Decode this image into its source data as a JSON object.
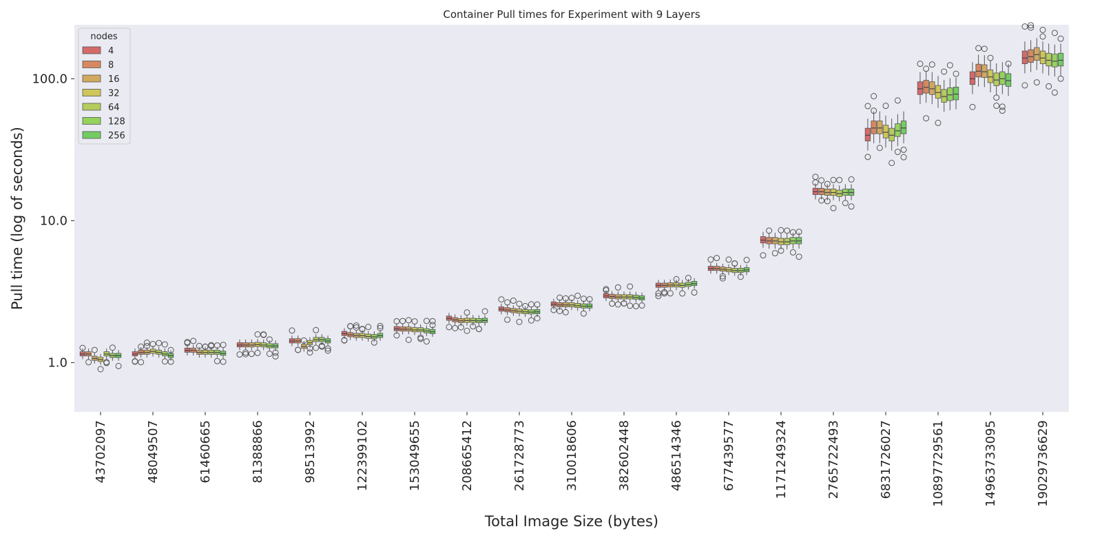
{
  "chart_data": {
    "type": "box",
    "title": "Container Pull times for Experiment with 9 Layers",
    "xlabel": "Total Image Size (bytes)",
    "ylabel": "Pull time (log of seconds)",
    "yscale": "log",
    "ylim": [
      0.45,
      240
    ],
    "yticks": [
      1.0,
      10.0,
      100.0
    ],
    "ytick_labels": [
      "1.0",
      "10.0",
      "100.0"
    ],
    "grid": false,
    "background": "#eaeaf2",
    "legend": {
      "title": "nodes",
      "placement": "top-left"
    },
    "hue_levels": [
      "4",
      "8",
      "16",
      "32",
      "64",
      "128",
      "256"
    ],
    "hue_colors": [
      "#d46a6a",
      "#d6885f",
      "#d1a85f",
      "#cfc65a",
      "#b4cd5c",
      "#95d35c",
      "#72cc62"
    ],
    "categories": [
      "43702097",
      "48049507",
      "61460665",
      "81388866",
      "98513992",
      "122399102",
      "153049655",
      "208665412",
      "261728773",
      "310018606",
      "382602448",
      "486514346",
      "677439577",
      "1171249324",
      "2765722493",
      "6831726027",
      "10897729561",
      "14963733095",
      "19029736629"
    ],
    "center_values": [
      [
        1.15,
        1.15,
        1.07,
        1.05,
        1.15,
        1.12,
        1.12
      ],
      [
        1.15,
        1.18,
        1.18,
        1.2,
        1.18,
        1.15,
        1.12
      ],
      [
        1.22,
        1.22,
        1.18,
        1.18,
        1.18,
        1.18,
        1.16
      ],
      [
        1.33,
        1.33,
        1.33,
        1.34,
        1.33,
        1.31,
        1.31
      ],
      [
        1.42,
        1.42,
        1.3,
        1.38,
        1.45,
        1.45,
        1.42
      ],
      [
        1.6,
        1.57,
        1.55,
        1.55,
        1.53,
        1.52,
        1.55
      ],
      [
        1.73,
        1.72,
        1.72,
        1.7,
        1.7,
        1.67,
        1.65
      ],
      [
        2.05,
        2.0,
        1.97,
        1.98,
        1.98,
        1.97,
        1.98
      ],
      [
        2.38,
        2.35,
        2.32,
        2.3,
        2.28,
        2.27,
        2.28
      ],
      [
        2.58,
        2.55,
        2.55,
        2.55,
        2.52,
        2.5,
        2.5
      ],
      [
        2.95,
        2.92,
        2.9,
        2.9,
        2.9,
        2.88,
        2.85
      ],
      [
        3.5,
        3.5,
        3.52,
        3.52,
        3.5,
        3.55,
        3.6
      ],
      [
        4.6,
        4.6,
        4.55,
        4.5,
        4.45,
        4.45,
        4.5
      ],
      [
        7.3,
        7.2,
        7.2,
        7.1,
        7.1,
        7.2,
        7.2
      ],
      [
        16.0,
        16.0,
        15.8,
        15.8,
        15.5,
        15.8,
        15.8
      ],
      [
        40.0,
        45.0,
        45.0,
        42.0,
        40.0,
        43.0,
        45.0
      ],
      [
        85.0,
        87.0,
        85.0,
        80.0,
        75.0,
        77.0,
        78.0
      ],
      [
        100.0,
        113.0,
        112.0,
        103.0,
        98.0,
        100.0,
        97.0
      ],
      [
        140.0,
        143.0,
        148.0,
        140.0,
        135.0,
        133.0,
        135.0
      ]
    ]
  }
}
